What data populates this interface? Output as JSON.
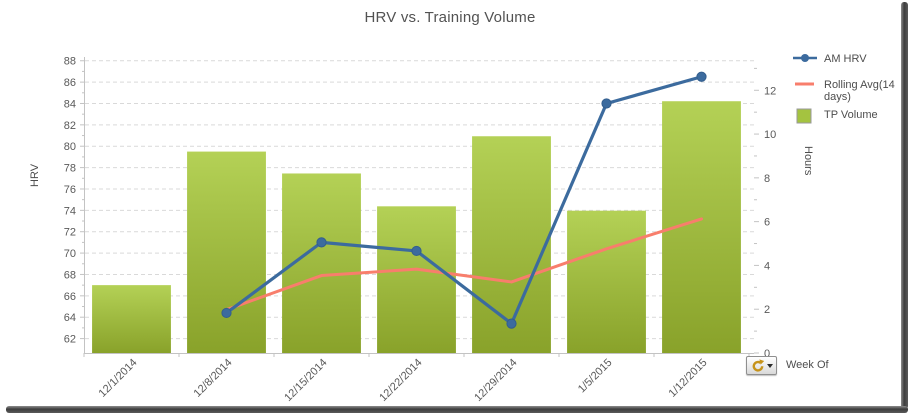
{
  "title": "HRV vs. Training Volume",
  "legend": {
    "items": [
      {
        "label": "AM HRV",
        "marker": "line-dot"
      },
      {
        "label": "Rolling Avg(14 days)",
        "marker": "line"
      },
      {
        "label": "TP Volume",
        "marker": "box"
      }
    ]
  },
  "field_button": {
    "label": "Week Of",
    "icon": "pivot-refresh-icon"
  },
  "colors": {
    "hrv_line": "#3c6b9e",
    "hrv_line_edge": "#335e8e",
    "rolling_line": "#f87e6c",
    "bar_top": "#b4d156",
    "bar_bottom": "#89a22a",
    "bar_mid": "#a4c340",
    "bar_border": "#9a9a9a",
    "grid": "#d9d9d9",
    "axis": "#c3c3c3",
    "text": "#595959",
    "frame": "#3d3d3d"
  },
  "chart_data": {
    "type": "combo",
    "subtypes": [
      "bar",
      "line"
    ],
    "title": "HRV vs. Training Volume",
    "categories": [
      "12/1/2014",
      "12/8/2014",
      "12/15/2014",
      "12/22/2014",
      "12/29/2014",
      "1/5/2015",
      "1/12/2015"
    ],
    "series": [
      {
        "name": "TP Volume",
        "type": "bar",
        "axis": "right",
        "unit": "hours",
        "values": [
          3.1,
          9.2,
          8.2,
          6.7,
          9.9,
          6.5,
          11.5
        ]
      },
      {
        "name": "AM HRV",
        "type": "line",
        "axis": "left",
        "marker": "circle",
        "values": [
          null,
          64.4,
          71.0,
          70.2,
          63.4,
          84.0,
          86.5
        ]
      },
      {
        "name": "Rolling Avg(14 days)",
        "type": "line",
        "axis": "left",
        "marker": "none",
        "values": [
          null,
          64.7,
          67.9,
          68.5,
          67.3,
          70.4,
          73.2
        ]
      }
    ],
    "left_axis": {
      "title": "HRV",
      "ticks": [
        62,
        64,
        66,
        68,
        70,
        72,
        74,
        76,
        78,
        80,
        82,
        84,
        86,
        88
      ],
      "min": 60.65,
      "max": 88.35
    },
    "right_axis": {
      "title": "Hours",
      "ticks": [
        0,
        2,
        4,
        6,
        8,
        10,
        12
      ],
      "min": 0,
      "max": 13.52
    },
    "x_axis": {
      "field": "Week Of",
      "label_rotation": -45
    },
    "grid": true,
    "legend_position": "right"
  }
}
